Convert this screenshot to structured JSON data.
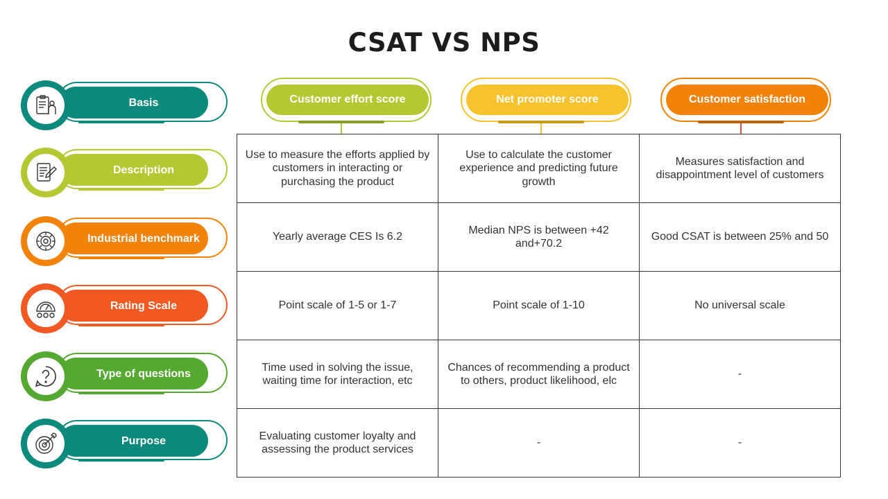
{
  "title": "CSAT VS NPS",
  "rows": [
    {
      "label": "Basis",
      "color": "#0e8a7d",
      "icon": "clipboard-person-icon"
    },
    {
      "label": "Description",
      "color": "#b5c833",
      "icon": "document-pen-icon"
    },
    {
      "label": "Industrial benchmark",
      "color": "#f2830a",
      "icon": "gear-icon"
    },
    {
      "label": "Rating Scale",
      "color": "#f05a22",
      "icon": "gauge-icon"
    },
    {
      "label": "Type of questions",
      "color": "#55a830",
      "icon": "question-icon"
    },
    {
      "label": "Purpose",
      "color": "#0e8a7d",
      "icon": "target-icon"
    }
  ],
  "columns": [
    {
      "label": "Customer effort score",
      "color": "#b5c833"
    },
    {
      "label": "Net promoter score",
      "color": "#f6c22e"
    },
    {
      "label": "Customer satisfaction",
      "color": "#f2830a"
    }
  ],
  "cells": [
    [
      "Use to measure the efforts applied by customers in interacting or purchasing the product",
      "Use to calculate the customer experience and predicting future growth",
      "Measures satisfaction and disappointment level of customers"
    ],
    [
      "Yearly average CES Is 6.2",
      "Median NPS is between +42 and+70.2",
      "Good CSAT is between 25% and 50"
    ],
    [
      "Point scale of 1-5 or 1-7",
      "Point scale of 1-10",
      "No universal scale"
    ],
    [
      "Time used in solving the issue, waiting time for interaction, etc",
      "Chances of recommending a product to others, product likelihood, elc",
      "-"
    ],
    [
      "Evaluating customer loyalty and assessing the product services",
      "-",
      "-"
    ]
  ]
}
